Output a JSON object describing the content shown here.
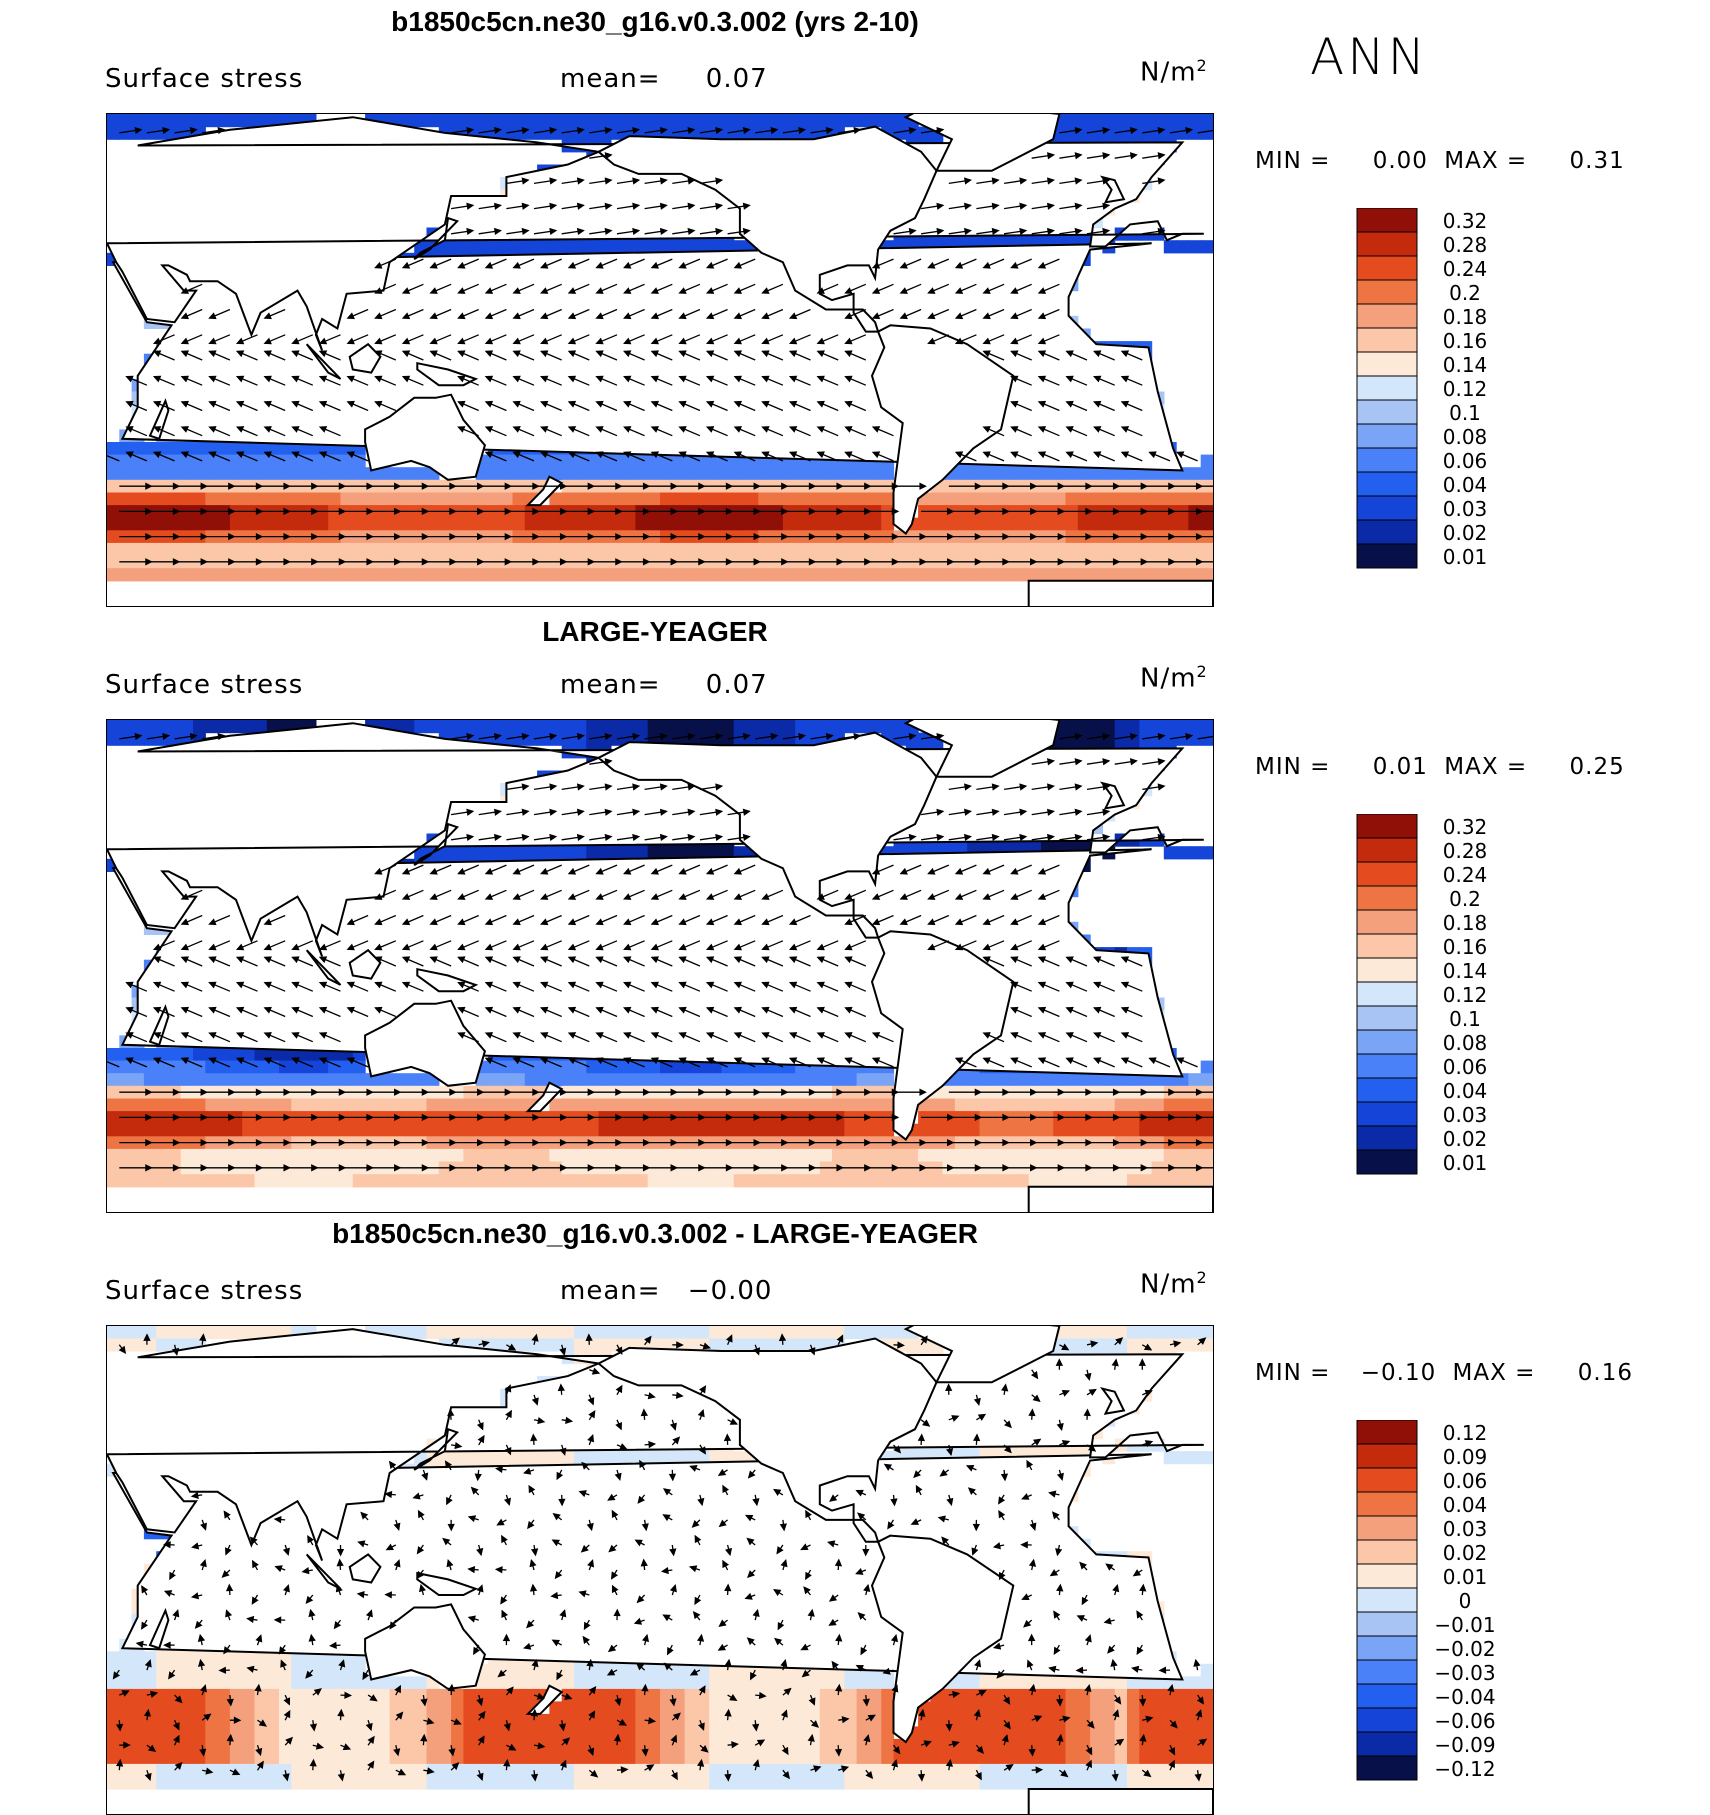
{
  "season": "ANN",
  "colors": {
    "seq_levels_labels_note": "",
    "seq": [
      "#08104a",
      "#0a2aa8",
      "#1444d8",
      "#2460f0",
      "#4a80f8",
      "#7aa4f6",
      "#a8c4f4",
      "#d4e6fa",
      "#fde9d8",
      "#fbc7a8",
      "#f5a07c",
      "#ee7444",
      "#e44b1e",
      "#c42a0c",
      "#901008"
    ],
    "diff": [
      "#08104a",
      "#0a2aa8",
      "#1444d8",
      "#2460f0",
      "#4a80f8",
      "#7aa4f6",
      "#a8c4f4",
      "#d4e6fa",
      "#fde9d8",
      "#fbc7a8",
      "#f5a07c",
      "#ee7444",
      "#e44b1e",
      "#c42a0c",
      "#901008"
    ]
  },
  "panels": [
    {
      "title": "b1850c5cn.ne30_g16.v0.3.002 (yrs 2-10)",
      "variable": "Surface stress",
      "mean_label": "mean=",
      "mean_value": "0.07",
      "units": "N/m",
      "units_sup": "2",
      "min_label": "MIN =",
      "min_value": "0.00",
      "max_label": "MAX =",
      "max_value": "0.31",
      "colorbar_labels": [
        "0.32",
        "0.28",
        "0.24",
        "0.2",
        "0.18",
        "0.16",
        "0.14",
        "0.12",
        "0.1",
        "0.08",
        "0.06",
        "0.04",
        "0.03",
        "0.02",
        "0.01"
      ],
      "field": "model"
    },
    {
      "title": "LARGE-YEAGER",
      "variable": "Surface stress",
      "mean_label": "mean=",
      "mean_value": "0.07",
      "units": "N/m",
      "units_sup": "2",
      "min_label": "MIN =",
      "min_value": "0.01",
      "max_label": "MAX =",
      "max_value": "0.25",
      "colorbar_labels": [
        "0.32",
        "0.28",
        "0.24",
        "0.2",
        "0.18",
        "0.16",
        "0.14",
        "0.12",
        "0.1",
        "0.08",
        "0.06",
        "0.04",
        "0.03",
        "0.02",
        "0.01"
      ],
      "field": "obs"
    },
    {
      "title": "b1850c5cn.ne30_g16.v0.3.002 - LARGE-YEAGER",
      "variable": "Surface stress",
      "mean_label": "mean=",
      "mean_value": "−0.00",
      "units": "N/m",
      "units_sup": "2",
      "min_label": "MIN =",
      "min_value": "−0.10",
      "max_label": "MAX =",
      "max_value": "0.16",
      "colorbar_labels": [
        "0.12",
        "0.09",
        "0.06",
        "0.04",
        "0.03",
        "0.02",
        "0.01",
        "0",
        "−0.01",
        "−0.02",
        "−0.03",
        "−0.04",
        "−0.06",
        "−0.09",
        "−0.12"
      ],
      "field": "diff"
    }
  ]
}
